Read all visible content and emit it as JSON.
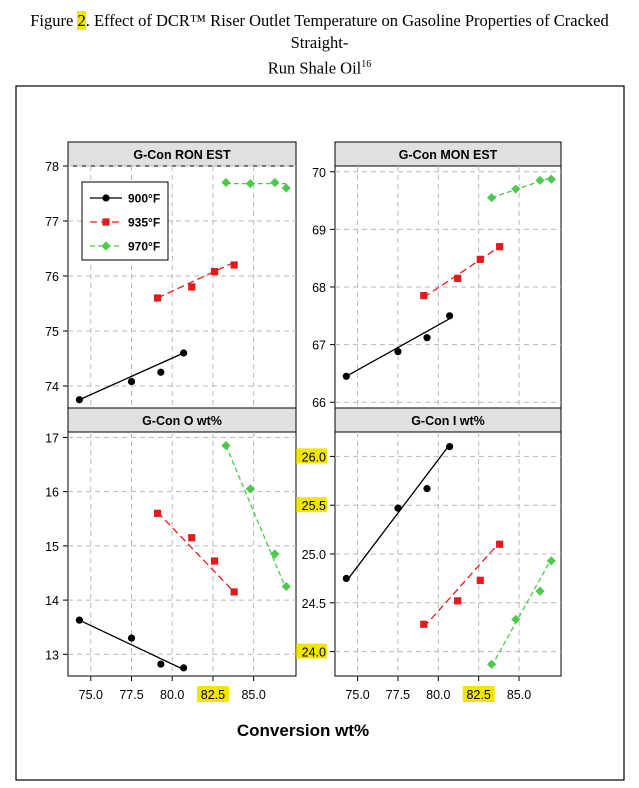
{
  "caption": {
    "prefix": "Figure ",
    "number": "2",
    "text_line1": ". Effect of DCR™ Riser Outlet Temperature on Gasoline Properties of Cracked Straight-",
    "text_line2": "Run Shale Oil",
    "superscript": "16"
  },
  "colors": {
    "s900": "#000000",
    "s935": "#e31a1c",
    "s970": "#4ec94e",
    "highlight": "#f2e600",
    "grid": "#b8b8b8",
    "header": "#e0e0e0"
  },
  "chart_data": [
    {
      "type": "line",
      "title": "G-Con RON EST",
      "ylim": [
        73.6,
        78.0
      ],
      "yticks": [
        "74",
        "75",
        "76",
        "77",
        "78"
      ],
      "yticks_highlighted": [],
      "legend": {
        "placement": "top-left",
        "entries": [
          "900°F",
          "935°F",
          "970°F"
        ]
      },
      "series": [
        {
          "name": "900°F",
          "x": [
            74.3,
            77.5,
            79.3,
            80.7
          ],
          "y": [
            73.75,
            74.08,
            74.25,
            74.6
          ],
          "fit": [
            [
              74.3,
              73.75
            ],
            [
              80.7,
              74.6
            ]
          ]
        },
        {
          "name": "935°F",
          "x": [
            79.1,
            81.2,
            82.6,
            83.8
          ],
          "y": [
            75.6,
            75.8,
            76.08,
            76.2
          ],
          "fit": [
            [
              79.1,
              75.6
            ],
            [
              83.8,
              76.25
            ]
          ]
        },
        {
          "name": "970°F",
          "x": [
            83.3,
            84.8,
            86.3,
            87.0
          ],
          "y": [
            77.7,
            77.68,
            77.7,
            77.6
          ],
          "fit": [
            [
              83.3,
              77.68
            ],
            [
              87.0,
              77.68
            ]
          ]
        }
      ]
    },
    {
      "type": "line",
      "title": "G-Con MON EST",
      "ylim": [
        65.9,
        70.1
      ],
      "yticks": [
        "66",
        "67",
        "68",
        "69",
        "70"
      ],
      "yticks_highlighted": [],
      "series": [
        {
          "name": "900°F",
          "x": [
            74.3,
            77.5,
            79.3,
            80.7
          ],
          "y": [
            66.45,
            66.88,
            67.12,
            67.5
          ],
          "fit": [
            [
              74.3,
              66.45
            ],
            [
              80.7,
              67.45
            ]
          ]
        },
        {
          "name": "935°F",
          "x": [
            79.1,
            81.2,
            82.6,
            83.8
          ],
          "y": [
            67.85,
            68.15,
            68.48,
            68.7
          ],
          "fit": [
            [
              79.1,
              67.82
            ],
            [
              83.8,
              68.7
            ]
          ]
        },
        {
          "name": "970°F",
          "x": [
            83.3,
            84.8,
            86.3,
            87.0
          ],
          "y": [
            69.55,
            69.7,
            69.85,
            69.87
          ],
          "fit": [
            [
              83.3,
              69.55
            ],
            [
              87.0,
              69.9
            ]
          ]
        }
      ]
    },
    {
      "type": "line",
      "title": "G-Con O wt%",
      "ylim": [
        12.6,
        17.1
      ],
      "yticks": [
        "13",
        "14",
        "15",
        "16",
        "17"
      ],
      "yticks_highlighted": [],
      "series": [
        {
          "name": "900°F",
          "x": [
            74.3,
            77.5,
            79.3,
            80.7
          ],
          "y": [
            13.63,
            13.3,
            12.82,
            12.75
          ],
          "fit": [
            [
              74.3,
              13.63
            ],
            [
              80.7,
              12.72
            ]
          ]
        },
        {
          "name": "935°F",
          "x": [
            79.1,
            81.2,
            82.6,
            83.8
          ],
          "y": [
            15.6,
            15.15,
            14.72,
            14.15
          ],
          "fit": [
            [
              79.1,
              15.62
            ],
            [
              83.8,
              14.15
            ]
          ]
        },
        {
          "name": "970°F",
          "x": [
            83.3,
            84.8,
            86.3,
            87.0
          ],
          "y": [
            16.85,
            16.05,
            14.85,
            14.25
          ],
          "fit": [
            [
              83.3,
              16.85
            ],
            [
              87.0,
              14.2
            ]
          ]
        }
      ]
    },
    {
      "type": "line",
      "title": "G-Con I wt%",
      "ylim": [
        23.75,
        26.25
      ],
      "yticks": [
        "24.0",
        "24.5",
        "25.0",
        "25.5",
        "26.0"
      ],
      "yticks_highlighted": [
        "24.0",
        "25.5",
        "26.0"
      ],
      "series": [
        {
          "name": "900°F",
          "x": [
            74.3,
            77.5,
            79.3,
            80.7
          ],
          "y": [
            24.75,
            25.47,
            25.67,
            26.1
          ],
          "fit": [
            [
              74.3,
              24.72
            ],
            [
              80.7,
              26.12
            ]
          ]
        },
        {
          "name": "935°F",
          "x": [
            79.1,
            81.2,
            82.6,
            83.8
          ],
          "y": [
            24.28,
            24.52,
            24.73,
            25.1
          ],
          "fit": [
            [
              79.1,
              24.25
            ],
            [
              83.8,
              25.12
            ]
          ]
        },
        {
          "name": "970°F",
          "x": [
            83.3,
            84.8,
            86.3,
            87.0
          ],
          "y": [
            23.87,
            24.33,
            24.62,
            24.93
          ],
          "fit": [
            [
              83.3,
              23.85
            ],
            [
              87.0,
              24.95
            ]
          ]
        }
      ]
    }
  ],
  "x_axis": {
    "label": "Conversion wt%",
    "xlim": [
      73.6,
      87.6
    ],
    "ticks": [
      "75.0",
      "77.5",
      "80.0",
      "82.5",
      "85.0"
    ],
    "ticks_highlighted": [
      "82.5"
    ]
  }
}
